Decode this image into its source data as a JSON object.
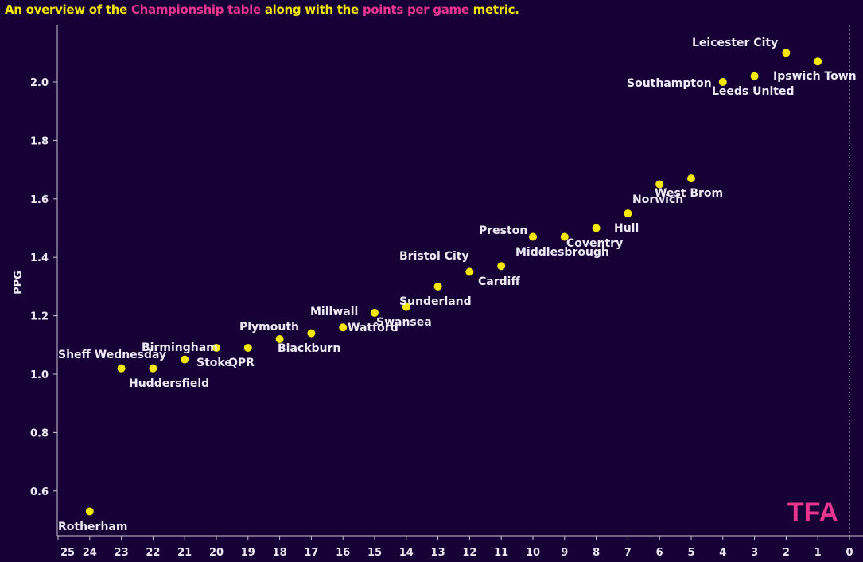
{
  "title": {
    "part1": "An overview of the ",
    "part2": "Championship table",
    "part3": " along with the ",
    "part4": "points per game",
    "part5": " metric."
  },
  "logo_text": "TFA",
  "colors": {
    "background": "#170036",
    "point": "#f5e900",
    "accent": "#e8368f",
    "title": "#f2e600"
  },
  "chart_data": {
    "type": "scatter",
    "title": "An overview of the Championship table along with the points per game metric.",
    "xlabel": "",
    "ylabel": "PPG",
    "xlim": [
      25,
      0
    ],
    "x_reversed": true,
    "ylim": [
      0.45,
      2.19
    ],
    "xticks": [
      25,
      24,
      23,
      22,
      21,
      20,
      19,
      18,
      17,
      16,
      15,
      14,
      13,
      12,
      11,
      10,
      9,
      8,
      7,
      6,
      5,
      4,
      3,
      2,
      1,
      0
    ],
    "yticks": [
      "0.6",
      "0.8",
      "1.0",
      "1.2",
      "1.4",
      "1.6",
      "1.8",
      "2.0"
    ],
    "grid": false,
    "points": [
      {
        "team": "Ipswich Town",
        "x": 1,
        "y": 2.07
      },
      {
        "team": "Leicester City",
        "x": 2,
        "y": 2.1
      },
      {
        "team": "Leeds United",
        "x": 3,
        "y": 2.02
      },
      {
        "team": "Southampton",
        "x": 4,
        "y": 2.0
      },
      {
        "team": "West Brom",
        "x": 5,
        "y": 1.67
      },
      {
        "team": "Norwich",
        "x": 6,
        "y": 1.65
      },
      {
        "team": "Hull",
        "x": 7,
        "y": 1.55
      },
      {
        "team": "Coventry",
        "x": 8,
        "y": 1.5
      },
      {
        "team": "Middlesbrough",
        "x": 9,
        "y": 1.47
      },
      {
        "team": "Preston",
        "x": 10,
        "y": 1.47
      },
      {
        "team": "Cardiff",
        "x": 11,
        "y": 1.37
      },
      {
        "team": "Bristol City",
        "x": 12,
        "y": 1.35
      },
      {
        "team": "Sunderland",
        "x": 13,
        "y": 1.3
      },
      {
        "team": "Swansea",
        "x": 14,
        "y": 1.23
      },
      {
        "team": "Millwall",
        "x": 15,
        "y": 1.21
      },
      {
        "team": "Watford",
        "x": 16,
        "y": 1.16
      },
      {
        "team": "Plymouth",
        "x": 17,
        "y": 1.14
      },
      {
        "team": "Blackburn",
        "x": 18,
        "y": 1.12
      },
      {
        "team": "QPR",
        "x": 19,
        "y": 1.09
      },
      {
        "team": "Birmingham",
        "x": 20,
        "y": 1.09
      },
      {
        "team": "Stoke",
        "x": 21,
        "y": 1.05
      },
      {
        "team": "Huddersfield",
        "x": 22,
        "y": 1.02
      },
      {
        "team": "Sheff Wednesday",
        "x": 23,
        "y": 1.02
      },
      {
        "team": "Rotherham",
        "x": 24,
        "y": 0.53
      }
    ]
  }
}
